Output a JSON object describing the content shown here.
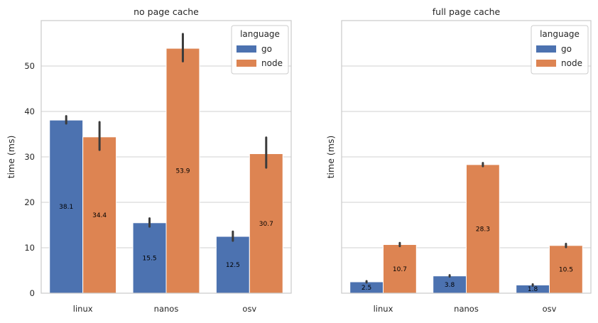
{
  "chart_data": [
    {
      "type": "bar",
      "title": "no page cache",
      "xlabel": "",
      "ylabel": "time (ms)",
      "categories": [
        "linux",
        "nanos",
        "osv"
      ],
      "ylim": [
        0,
        60
      ],
      "yticks": [
        0,
        10,
        20,
        30,
        40,
        50
      ],
      "series": [
        {
          "name": "go",
          "color": "#4c72b0",
          "values": [
            38.1,
            15.5,
            12.5
          ],
          "ci_low": [
            37.5,
            14.8,
            11.7
          ],
          "ci_high": [
            38.8,
            16.3,
            13.4
          ],
          "labels": [
            "38.1",
            "15.5",
            "12.5"
          ]
        },
        {
          "name": "node",
          "color": "#dd8452",
          "values": [
            34.4,
            53.9,
            30.7
          ],
          "ci_low": [
            31.7,
            51.2,
            27.8
          ],
          "ci_high": [
            37.5,
            56.9,
            34.1
          ],
          "labels": [
            "34.4",
            "53.9",
            "30.7"
          ]
        }
      ],
      "legend": {
        "title": "language",
        "placement": "top-right"
      },
      "grid": "y"
    },
    {
      "type": "bar",
      "title": "full page cache",
      "xlabel": "",
      "ylabel": "time (ms)",
      "categories": [
        "linux",
        "nanos",
        "osv"
      ],
      "ylim": [
        0,
        60
      ],
      "yticks": [
        0,
        10,
        20,
        30,
        40,
        50
      ],
      "series": [
        {
          "name": "go",
          "color": "#4c72b0",
          "values": [
            2.5,
            3.8,
            1.8
          ],
          "ci_low": [
            2.5,
            3.8,
            1.8
          ],
          "ci_high": [
            2.5,
            3.8,
            1.8
          ],
          "labels": [
            "2.5",
            "3.8",
            "1.8"
          ]
        },
        {
          "name": "node",
          "color": "#dd8452",
          "values": [
            10.7,
            28.3,
            10.5
          ],
          "ci_low": [
            10.5,
            28.1,
            10.3
          ],
          "ci_high": [
            10.9,
            28.5,
            10.7
          ],
          "labels": [
            "10.7",
            "28.3",
            "10.5"
          ]
        }
      ],
      "legend": {
        "title": "language",
        "placement": "top-right"
      },
      "grid": "y"
    }
  ]
}
